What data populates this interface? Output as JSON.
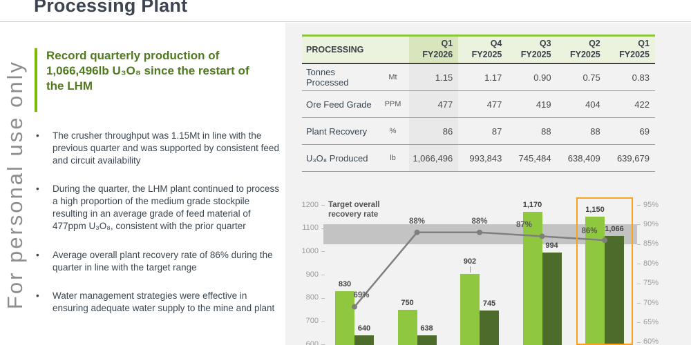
{
  "page": {
    "title": "Processing Plant"
  },
  "watermark": "For personal use only",
  "colors": {
    "accent_green": "#7cbc00",
    "headline_green": "#4f7a1d",
    "table_top_border": "#8cc63d",
    "panel_background": "#f2f2f2",
    "highlight_orange": "#faa21e"
  },
  "left_panel": {
    "headline": "Record quarterly production of 1,066,496lb U₃O₈ since the restart of the LHM",
    "bullets": [
      "The crusher throughput was 1.15Mt in line with the previous quarter and was supported by consistent feed and circuit availability",
      "During the quarter, the LHM plant continued to process a high proportion of the medium grade stockpile resulting in an average grade of feed material of 477ppm U₃O₈, consistent with the prior quarter",
      "Average overall plant recovery rate of 86% during the quarter in line with the target range",
      "Water management strategies were effective in ensuring adequate water supply to the mine and plant"
    ]
  },
  "table": {
    "title": "PROCESSING",
    "columns": [
      {
        "quarter": "Q1",
        "year": "FY2026",
        "highlighted": true
      },
      {
        "quarter": "Q4",
        "year": "FY2025",
        "highlighted": false
      },
      {
        "quarter": "Q3",
        "year": "FY2025",
        "highlighted": false
      },
      {
        "quarter": "Q2",
        "year": "FY2025",
        "highlighted": false
      },
      {
        "quarter": "Q1",
        "year": "FY2025",
        "highlighted": false
      }
    ],
    "rows": [
      {
        "label": "Tonnes Processed",
        "unit": "Mt",
        "values": [
          "1.15",
          "1.17",
          "0.90",
          "0.75",
          "0.83"
        ]
      },
      {
        "label": "Ore Feed Grade",
        "unit": "PPM",
        "values": [
          "477",
          "477",
          "419",
          "404",
          "422"
        ]
      },
      {
        "label": "Plant Recovery",
        "unit": "%",
        "values": [
          "86",
          "87",
          "88",
          "88",
          "69"
        ]
      },
      {
        "label": "U₃O₈ Produced",
        "unit": "lb",
        "values": [
          "1,066,496",
          "993,843",
          "745,484",
          "638,409",
          "639,679"
        ]
      }
    ]
  },
  "chart_data": {
    "type": "bar",
    "note": "Combo chart: grouped bars (left axis, values in thousand lb scale shown 600-1200) plus recovery-rate line (right axis %). X category labels are cut off below the visible area.",
    "series": [
      {
        "name": "light-green-bars",
        "axis": "left",
        "color": "#8fc73e",
        "values": [
          830,
          750,
          902,
          1170,
          1150
        ],
        "labels": [
          "830",
          "750",
          "902",
          "1,170",
          "1,150"
        ]
      },
      {
        "name": "dark-green-bars",
        "axis": "left",
        "color": "#4d6b2b",
        "values": [
          640,
          638,
          745,
          994,
          1066
        ],
        "labels": [
          "640",
          "638",
          "745",
          "994",
          "1,066"
        ]
      },
      {
        "name": "recovery-rate-line",
        "axis": "right",
        "color": "#7f7f7f",
        "values": [
          69,
          88,
          88,
          87,
          86
        ],
        "labels": [
          "69%",
          "88%",
          "88%",
          "87%",
          "86%"
        ]
      }
    ],
    "left_axis": {
      "ticks": [
        "1200",
        "1100",
        "1000",
        "900",
        "800",
        "700",
        "600"
      ],
      "max": 1200,
      "step": 100
    },
    "right_axis": {
      "ticks": [
        "95%",
        "90%",
        "85%",
        "80%",
        "75%",
        "70%",
        "65%",
        "60%"
      ],
      "max": 95,
      "step": 5
    },
    "target_band": {
      "label": "Target overall recovery rate",
      "from_pct": 85,
      "to_pct": 90,
      "color": "#c3c3c3"
    },
    "highlight": {
      "group_index": 4,
      "color": "#faa21e"
    },
    "legend": "none",
    "grid": "off"
  }
}
